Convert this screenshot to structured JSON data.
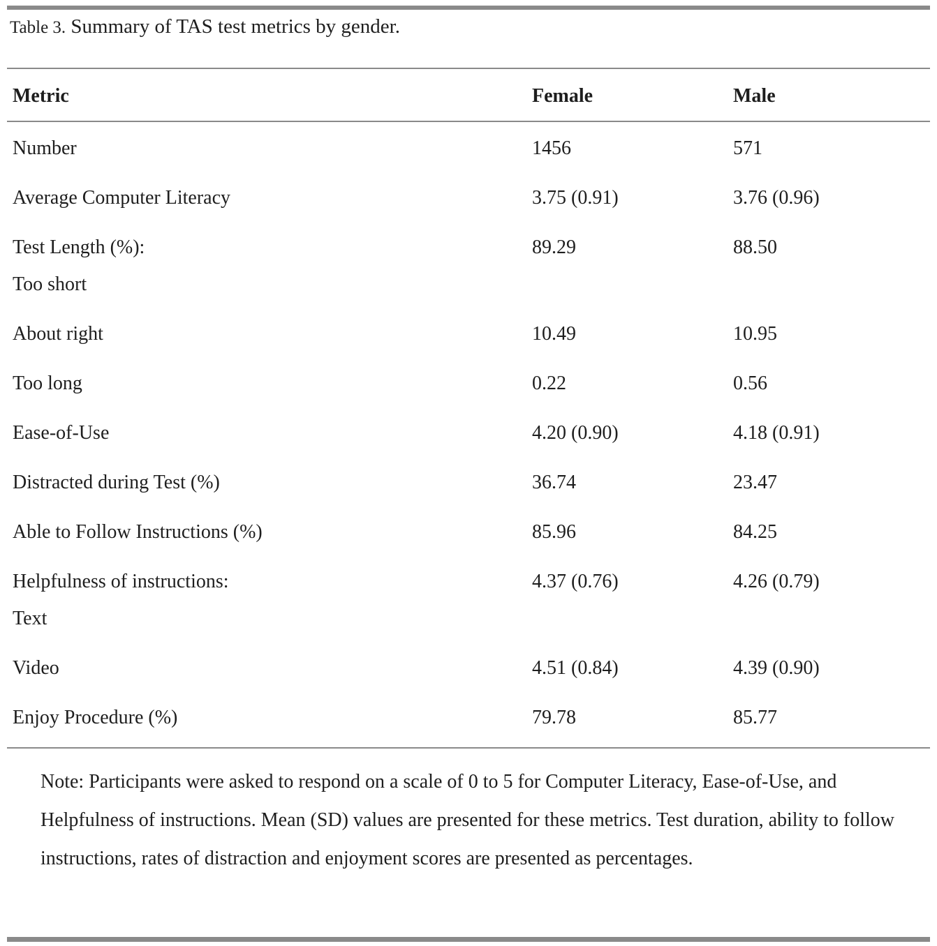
{
  "title": {
    "label": "Table 3.",
    "caption": "Summary of TAS test metrics by gender."
  },
  "table": {
    "columns": [
      "Metric",
      "Female",
      "Male"
    ],
    "rows": [
      {
        "metric": "Number",
        "female": "1456",
        "male": "571"
      },
      {
        "metric": "Average Computer Literacy",
        "female": "3.75 (0.91)",
        "male": "3.76 (0.96)"
      },
      {
        "metric": "Test Length (%):",
        "sub": "Too short",
        "female": "89.29",
        "male": "88.50"
      },
      {
        "metric": "About right",
        "female": "10.49",
        "male": "10.95"
      },
      {
        "metric": "Too long",
        "female": "0.22",
        "male": "0.56"
      },
      {
        "metric": "Ease-of-Use",
        "female": "4.20 (0.90)",
        "male": "4.18 (0.91)"
      },
      {
        "metric": "Distracted during Test (%)",
        "female": "36.74",
        "male": "23.47"
      },
      {
        "metric": "Able to Follow Instructions (%)",
        "female": "85.96",
        "male": "84.25"
      },
      {
        "metric": "Helpfulness of instructions:",
        "sub": "Text",
        "female": "4.37 (0.76)",
        "male": "4.26 (0.79)"
      },
      {
        "metric": "Video",
        "female": "4.51 (0.84)",
        "male": "4.39 (0.90)"
      },
      {
        "metric": "Enjoy Procedure (%)",
        "female": "79.78",
        "male": "85.77"
      }
    ]
  },
  "note": {
    "text": "Note: Participants were asked to respond on a scale of 0 to 5 for Computer Literacy, Ease-of-Use, and Helpfulness of instructions. Mean (SD) values are presented for these metrics. Test duration, ability to follow instructions, rates of distraction and enjoyment scores are presented as percentages."
  },
  "colors": {
    "rule_gray": "#8a8a8a",
    "text": "#1e1e1e"
  }
}
